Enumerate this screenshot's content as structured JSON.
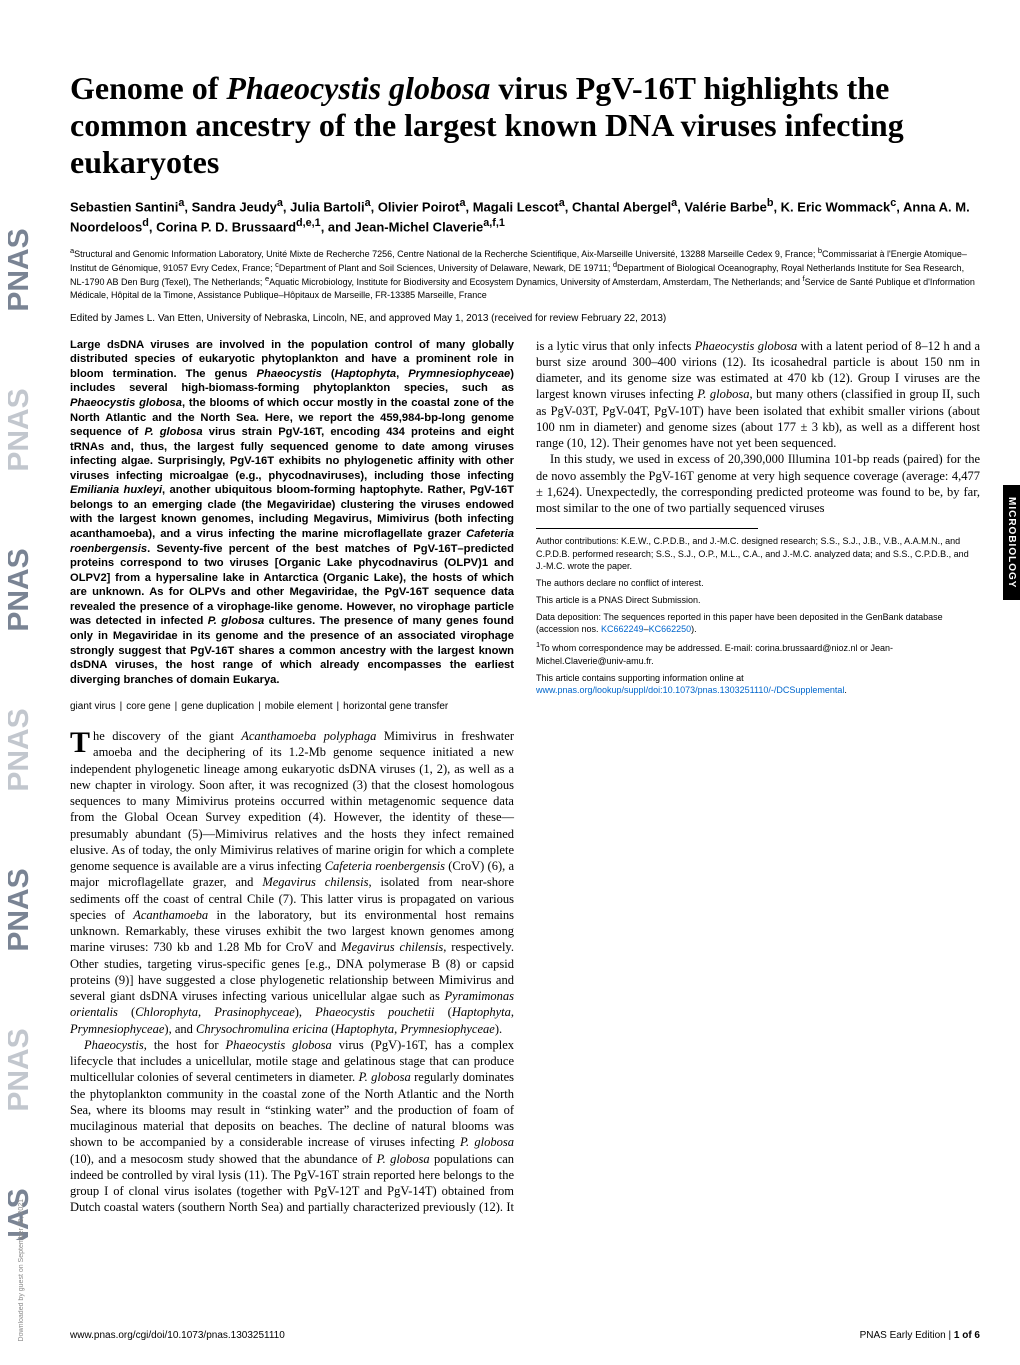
{
  "title_html": "Genome of <em>Phaeocystis globosa</em> virus PgV-16T highlights the common ancestry of the largest known DNA viruses infecting eukaryotes",
  "authors_html": "Sebastien Santini<sup>a</sup>, Sandra Jeudy<sup>a</sup>, Julia Bartoli<sup>a</sup>, Olivier Poirot<sup>a</sup>, Magali Lescot<sup>a</sup>, Chantal Abergel<sup>a</sup>, Val&eacute;rie Barbe<sup>b</sup>, K. Eric Wommack<sup>c</sup>, Anna A. M. Noordeloos<sup>d</sup>, Corina P. D. Brussaard<sup>d,e,1</sup>, and Jean-Michel Claverie<sup>a,f,1</sup>",
  "affiliations_html": "<sup>a</sup>Structural and Genomic Information Laboratory, Unit&eacute; Mixte de Recherche 7256, Centre National de la Recherche Scientifique, Aix-Marseille Universit&eacute;, 13288 Marseille Cedex 9, France; <sup>b</sup>Commissariat &agrave; l'Energie Atomique&ndash;Institut de G&eacute;nomique, 91057 Evry Cedex, France; <sup>c</sup>Department of Plant and Soil Sciences, University of Delaware, Newark, DE 19711; <sup>d</sup>Department of Biological Oceanography, Royal Netherlands Institute for Sea Research, NL-1790 AB Den Burg (Texel), The Netherlands; <sup>e</sup>Aquatic Microbiology, Institute for Biodiversity and Ecosystem Dynamics, University of Amsterdam, Amsterdam, The Netherlands; and <sup>f</sup>Service de Sant&eacute; Publique et d'Information M&eacute;dicale, H&ocirc;pital de la Timone, Assistance Publique&ndash;H&ocirc;pitaux de Marseille, FR-13385 Marseille, France",
  "edited_by": "Edited by James L. Van Etten, University of Nebraska, Lincoln, NE, and approved May 1, 2013 (received for review February 22, 2013)",
  "abstract_html": "Large dsDNA viruses are involved in the population control of many globally distributed species of eukaryotic phytoplankton and have a prominent role in bloom termination. The genus <em>Phaeocystis</em> (<em>Haptophyta</em>, <em>Prymnesiophyceae</em>) includes several high-biomass-forming phytoplankton species, such as <em>Phaeocystis globosa</em>, the blooms of which occur mostly in the coastal zone of the North Atlantic and the North Sea. Here, we report the 459,984-bp-long genome sequence of <em>P. globosa</em> virus strain PgV-16T, encoding 434 proteins and eight tRNAs and, thus, the largest fully sequenced genome to date among viruses infecting algae. Surprisingly, PgV-16T exhibits no phylogenetic affinity with other viruses infecting microalgae (e.g., phycodnaviruses), including those infecting <em>Emiliania huxleyi</em>, another ubiquitous bloom-forming haptophyte. Rather, PgV-16T belongs to an emerging clade (the Megaviridae) clustering the viruses endowed with the largest known genomes, including Megavirus, Mimivirus (both infecting acanthamoeba), and a virus infecting the marine microflagellate grazer <em>Cafeteria roenbergensis</em>. Seventy-five percent of the best matches of PgV-16T&ndash;predicted proteins correspond to two viruses [Organic Lake phycodnavirus (OLPV)1 and OLPV2] from a hypersaline lake in Antarctica (Organic Lake), the hosts of which are unknown. As for OLPVs and other Megaviridae, the PgV-16T sequence data revealed the presence of a virophage-like genome. However, no virophage particle was detected in infected <em>P. globosa</em> cultures. The presence of many genes found only in Megaviridae in its genome and the presence of an associated virophage strongly suggest that PgV-16T shares a common ancestry with the largest known dsDNA viruses, the host range of which already encompasses the earliest diverging branches of domain Eukarya.",
  "keywords": [
    "giant virus",
    "core gene",
    "gene duplication",
    "mobile element",
    "horizontal gene transfer"
  ],
  "body_paragraphs_html": [
    "The discovery of the giant <em>Acanthamoeba polyphaga</em> Mimivirus in freshwater amoeba and the deciphering of its 1.2-Mb genome sequence initiated a new independent phylogenetic lineage among eukaryotic dsDNA viruses (1, 2), as well as a new chapter in virology. Soon after, it was recognized (3) that the closest homologous sequences to many Mimivirus proteins occurred within metagenomic sequence data from the Global Ocean Survey expedition (4). However, the identity of these&mdash;presumably abundant (5)&mdash;Mimivirus relatives and the hosts they infect remained elusive. As of today, the only Mimivirus relatives of marine origin for which a complete genome sequence is available are a virus infecting <em>Cafeteria roenbergensis</em> (CroV) (6), a major microflagellate grazer, and <em>Megavirus chilensis</em>, isolated from near-shore sediments off the coast of central Chile (7). This latter virus is propagated on various species of <em>Acanthamoeba</em> in the laboratory, but its environmental host remains unknown. Remarkably, these viruses exhibit the two largest known genomes among marine viruses: 730 kb and 1.28 Mb for CroV and <em>Megavirus chilensis</em>, respectively. Other studies, targeting virus-specific genes [e.g., DNA polymerase B (8) or capsid proteins (9)] have suggested a close phylogenetic relationship between Mimivirus and several giant dsDNA viruses infecting various unicellular algae such as <em>Pyramimonas orientalis</em> (<em>Chlorophyta</em>, <em>Prasinophyceae</em>), <em>Phaeocystis pouchetii</em> (<em>Haptophyta</em>, <em>Prymnesiophyceae</em>), and <em>Chrysochromulina ericina</em> (<em>Haptophyta</em>, <em>Prymnesiophyceae</em>).",
    "<em>Phaeocystis</em>, the host for <em>Phaeocystis globosa</em> virus (PgV)-16T, has a complex lifecycle that includes a unicellular, motile stage and gelatinous stage that can produce multicellular colonies of several centimeters in diameter. <em>P. globosa</em> regularly dominates the phytoplankton community in the coastal zone of the North Atlantic and the North Sea, where its blooms may result in &ldquo;stinking water&rdquo; and the production of foam of mucilaginous material that deposits on beaches. The decline of natural blooms was shown to be accompanied by a considerable increase of viruses infecting <em>P. globosa</em> (10), and a mesocosm study showed that the abundance of <em>P. globosa</em> populations can indeed be controlled by viral lysis (11). The PgV-16T strain reported here belongs to the group I of clonal virus isolates (together with PgV-12T and PgV-14T) obtained from Dutch coastal waters (southern North Sea) and partially characterized previously (12). It is a lytic virus that only infects <em>Phaeocystis globosa</em> with a latent period of 8&ndash;12 h and a burst size around 300&ndash;400 virions (12). Its icosahedral particle is about 150 nm in diameter, and its genome size was estimated at 470 kb (12). Group I viruses are the largest known viruses infecting <em>P. globosa</em>, but many others (classified in group II, such as PgV-03T, PgV-04T, PgV-10T) have been isolated that exhibit smaller virions (about 100 nm in diameter) and genome sizes (about 177 &plusmn; 3 kb), as well as a different host range (10, 12). Their genomes have not yet been sequenced.",
    "In this study, we used in excess of 20,390,000 Illumina 101-bp reads (paired) for the de novo assembly the PgV-16T genome at very high sequence coverage (average: 4,477 &plusmn; 1,624). Unexpectedly, the corresponding predicted proteome was found to be, by far, most similar to the one of two partially sequenced viruses"
  ],
  "footnotes": {
    "contributions": "Author contributions: K.E.W., C.P.D.B., and J.-M.C. designed research; S.S., S.J., J.B., V.B., A.A.M.N., and C.P.D.B. performed research; S.S., S.J., O.P., M.L., C.A., and J.-M.C. analyzed data; and S.S., C.P.D.B., and J.-M.C. wrote the paper.",
    "conflict": "The authors declare no conflict of interest.",
    "submission": "This article is a PNAS Direct Submission.",
    "data_deposition_html": "Data deposition: The sequences reported in this paper have been deposited in the GenBank database (accession nos. <a href='#'>KC662249</a>&ndash;<a href='#'>KC662250</a>).",
    "correspondence_html": "<sup>1</sup>To whom correspondence may be addressed. E-mail: corina.brussaard@nioz.nl or Jean-Michel.Claverie@univ-amu.fr.",
    "supporting_html": "This article contains supporting information online at <a href='#'>www.pnas.org/lookup/suppl/doi:10.1073/pnas.1303251110/-/DCSupplemental</a>."
  },
  "footer": {
    "doi": "www.pnas.org/cgi/doi/10.1073/pnas.1303251110",
    "page_html": "PNAS Early Edition | <b>1 of 6</b>"
  },
  "section_tab": "MICROBIOLOGY",
  "download_note": "Downloaded by guest on September 29, 2021",
  "colors": {
    "link": "#0066cc",
    "sidebar_fill": "#6b7280",
    "sidebar_light": "#d1d5db"
  }
}
